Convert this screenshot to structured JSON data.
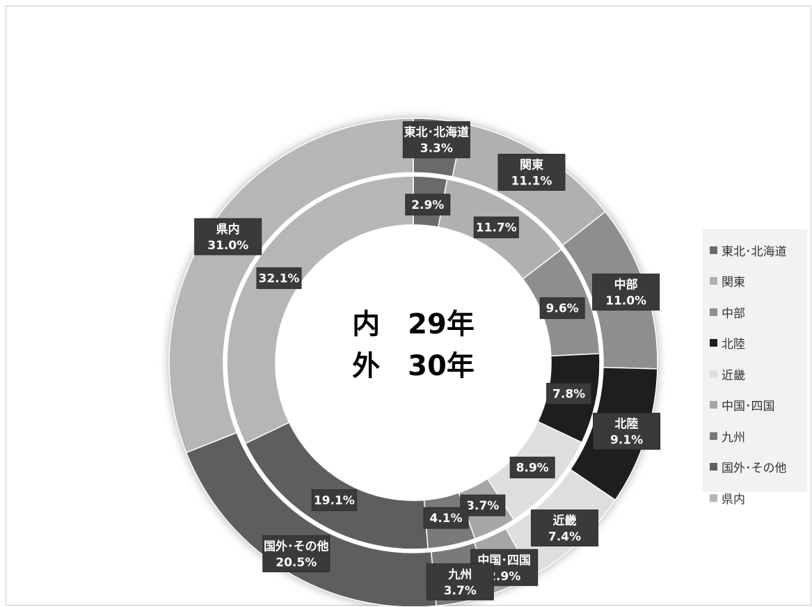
{
  "chart_data": {
    "type": "pie",
    "subtype": "doughnut",
    "categories": [
      "東北･北海道",
      "関東",
      "中部",
      "北陸",
      "近畿",
      "中国･四国",
      "九州",
      "国外･その他",
      "県内"
    ],
    "colors": [
      "#6a6a6a",
      "#b0b0b0",
      "#8e8e8e",
      "#1e1e1e",
      "#dedede",
      "#a6a6a6",
      "#7a7a7a",
      "#5e5e5e",
      "#b6b6b6"
    ],
    "series": [
      {
        "ring": "inner",
        "values": [
          2.9,
          11.7,
          9.6,
          7.8,
          8.9,
          3.7,
          4.1,
          19.1,
          32.1
        ],
        "labels": [
          "2.9%",
          "11.7%",
          "9.6%",
          "7.8%",
          "8.9%",
          "3.7%",
          "4.1%",
          "19.1%",
          "32.1%"
        ]
      },
      {
        "ring": "outer",
        "values": [
          3.3,
          11.1,
          11.0,
          9.1,
          7.4,
          2.9,
          3.7,
          20.5,
          31.0
        ],
        "labels": [
          "3.3%",
          "11.1%",
          "11.0%",
          "9.1%",
          "7.4%",
          "2.9%",
          "3.7%",
          "20.5%",
          "31.0%"
        ]
      }
    ],
    "center_text": [
      "内　29年",
      "外　30年"
    ],
    "legend": {
      "position": "right",
      "entries": [
        "東北･北海道",
        "関東",
        "中部",
        "北陸",
        "近畿",
        "中国･四国",
        "九州",
        "国外･その他",
        "県内"
      ]
    }
  }
}
